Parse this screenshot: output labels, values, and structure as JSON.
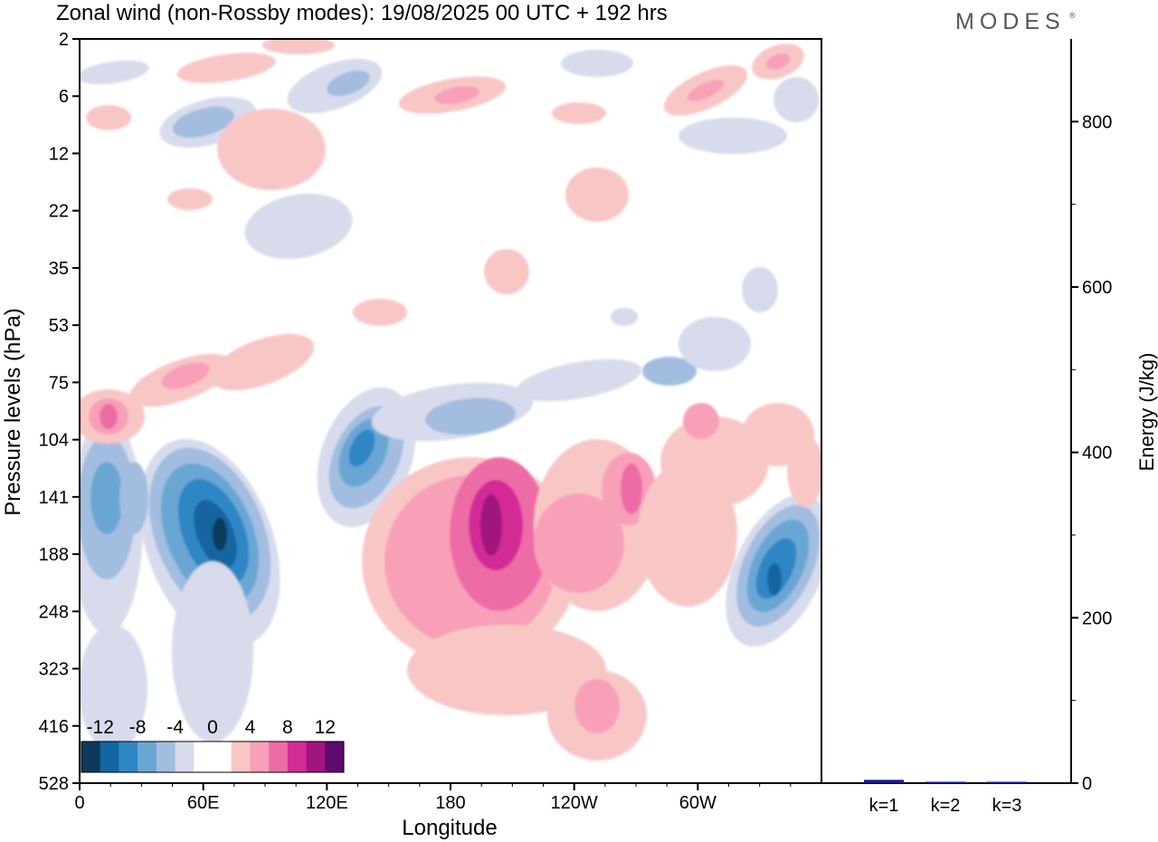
{
  "header": {
    "title": "Zonal wind (non-Rossby modes):  19/08/2025  00 UTC  + 192 hrs",
    "logo": "MODES",
    "logo_mark": "®"
  },
  "chart_data": [
    {
      "type": "heatmap",
      "title": "Zonal wind (non-Rossby modes):  19/08/2025  00 UTC  + 192 hrs",
      "xlabel": "Longitude",
      "ylabel": "Pressure levels (hPa)",
      "x_ticks": [
        "0",
        "60E",
        "120E",
        "180",
        "120W",
        "60W"
      ],
      "x_tick_values": [
        0,
        60,
        120,
        180,
        240,
        300
      ],
      "xlim": [
        0,
        360
      ],
      "y_ticks": [
        "2",
        "6",
        "12",
        "22",
        "35",
        "53",
        "75",
        "104",
        "141",
        "188",
        "248",
        "323",
        "416",
        "528"
      ],
      "y_axis": "pressure levels, top = 2 hPa, bottom = 528 hPa",
      "colorbar": {
        "labels": [
          "-12",
          "-8",
          "-4",
          "0",
          "4",
          "8",
          "12"
        ],
        "colors": [
          "#0d3a5c",
          "#1265a0",
          "#2f86c4",
          "#6aa6d4",
          "#a2bde0",
          "#d7dbec",
          "#ffffff",
          "#ffffff",
          "#f9c6c6",
          "#f7a0b8",
          "#ee6ca6",
          "#d42c96",
          "#a0157e",
          "#5e0a6e"
        ]
      },
      "features": [
        {
          "sign": "negative",
          "lon_center": 65,
          "level": "141-188",
          "min_value": -12
        },
        {
          "sign": "negative",
          "lon_center": 132,
          "level": "104-141",
          "min_value": -8
        },
        {
          "sign": "negative",
          "lon_center": 338,
          "level": "188-248",
          "min_value": -10
        },
        {
          "sign": "positive",
          "lon_center": 195,
          "level": "141-188",
          "max_value": 10
        },
        {
          "sign": "positive",
          "lon_center": 265,
          "level": "141",
          "max_value": 8
        },
        {
          "sign": "positive",
          "lon_center": 15,
          "level": "75-104",
          "max_value": 8
        }
      ]
    },
    {
      "type": "bar",
      "categories": [
        "k=1",
        "k=2",
        "k=3"
      ],
      "values": [
        4,
        1,
        0.5
      ],
      "ylabel": "Energy (J/kg)",
      "ylim": [
        0,
        900
      ],
      "y_ticks": [
        "0",
        "200",
        "400",
        "600",
        "800"
      ],
      "y_tick_values": [
        0,
        200,
        400,
        600,
        800
      ],
      "bar_color": "#1a1a8c"
    }
  ]
}
